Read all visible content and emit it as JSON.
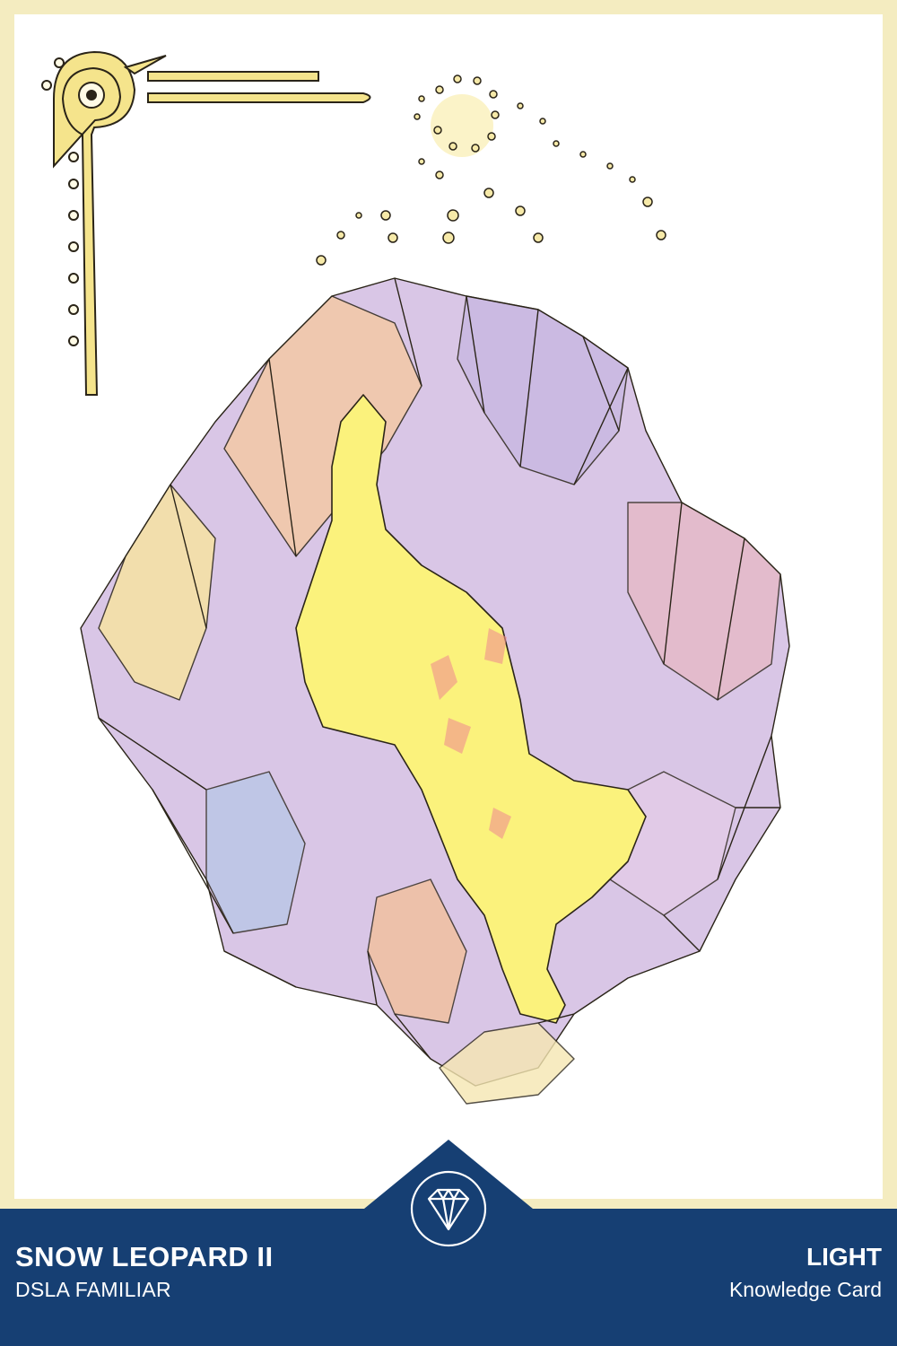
{
  "card": {
    "name": "SNOW LEOPARD II",
    "subtitle": "DSLA FAMILIAR",
    "element": "LIGHT",
    "card_type": "Knowledge Card"
  },
  "icons": {
    "badge": "diamond-gem-icon"
  },
  "colors": {
    "frame": "#f4ecc0",
    "footer": "#163f73",
    "gold": "#f2de7a",
    "text": "#ffffff"
  }
}
